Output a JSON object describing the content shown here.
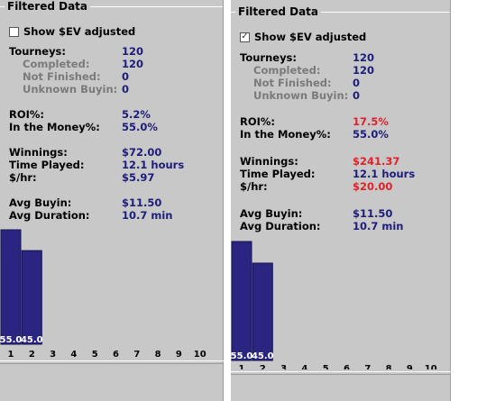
{
  "colors": {
    "panel_bg": "#c8c8c8",
    "value_blue": "#1c1c7a",
    "value_red": "#e0202a",
    "bar_fill": "#2a2580",
    "sub_label_gray": "#7a7a7a"
  },
  "left": {
    "title": "Filtered Data",
    "checkbox_label": "Show $EV adjusted",
    "checked": false,
    "stats": {
      "tourneys_label": "Tourneys:",
      "tourneys": "120",
      "completed_label": "Completed:",
      "completed": "120",
      "not_finished_label": "Not Finished:",
      "not_finished": "0",
      "unknown_label": "Unknown Buyin:",
      "unknown": "0",
      "roi_label": "ROI%:",
      "roi": "5.2%",
      "itm_label": "In the Money%:",
      "itm": "55.0%",
      "winnings_label": "Winnings:",
      "winnings": "$72.00",
      "time_label": "Time Played:",
      "time": "12.1 hours",
      "hr_label": "$/hr:",
      "hr": "$5.97",
      "avg_buyin_label": "Avg Buyin:",
      "avg_buyin": "$11.50",
      "avg_duration_label": "Avg Duration:",
      "avg_duration": "10.7 min"
    }
  },
  "right": {
    "title": "Filtered Data",
    "checkbox_label": "Show $EV adjusted",
    "checked": true,
    "stats": {
      "tourneys_label": "Tourneys:",
      "tourneys": "120",
      "completed_label": "Completed:",
      "completed": "120",
      "not_finished_label": "Not Finished:",
      "not_finished": "0",
      "unknown_label": "Unknown Buyin:",
      "unknown": "0",
      "roi_label": "ROI%:",
      "roi": "17.5%",
      "itm_label": "In the Money%:",
      "itm": "55.0%",
      "winnings_label": "Winnings:",
      "winnings": "$241.37",
      "time_label": "Time Played:",
      "time": "12.1 hours",
      "hr_label": "$/hr:",
      "hr": "$20.00",
      "avg_buyin_label": "Avg Buyin:",
      "avg_buyin": "$11.50",
      "avg_duration_label": "Avg Duration:",
      "avg_duration": "10.7 min"
    }
  },
  "chart_data": [
    {
      "type": "bar",
      "categories": [
        "1",
        "2",
        "3",
        "4",
        "5",
        "6",
        "7",
        "8",
        "9",
        "10"
      ],
      "values": [
        55.0,
        45.0,
        0,
        0,
        0,
        0,
        0,
        0,
        0,
        0
      ],
      "data_labels": [
        "55.0",
        "45.0",
        "",
        "",
        "",
        "",
        "",
        "",
        "",
        ""
      ],
      "ylim": [
        0,
        55
      ]
    },
    {
      "type": "bar",
      "categories": [
        "1",
        "2",
        "3",
        "4",
        "5",
        "6",
        "7",
        "8",
        "9",
        "10"
      ],
      "values": [
        55.0,
        45.0,
        0,
        0,
        0,
        0,
        0,
        0,
        0,
        0
      ],
      "data_labels": [
        "55.0",
        "45.0",
        "",
        "",
        "",
        "",
        "",
        "",
        "",
        ""
      ],
      "ylim": [
        0,
        55
      ]
    }
  ]
}
